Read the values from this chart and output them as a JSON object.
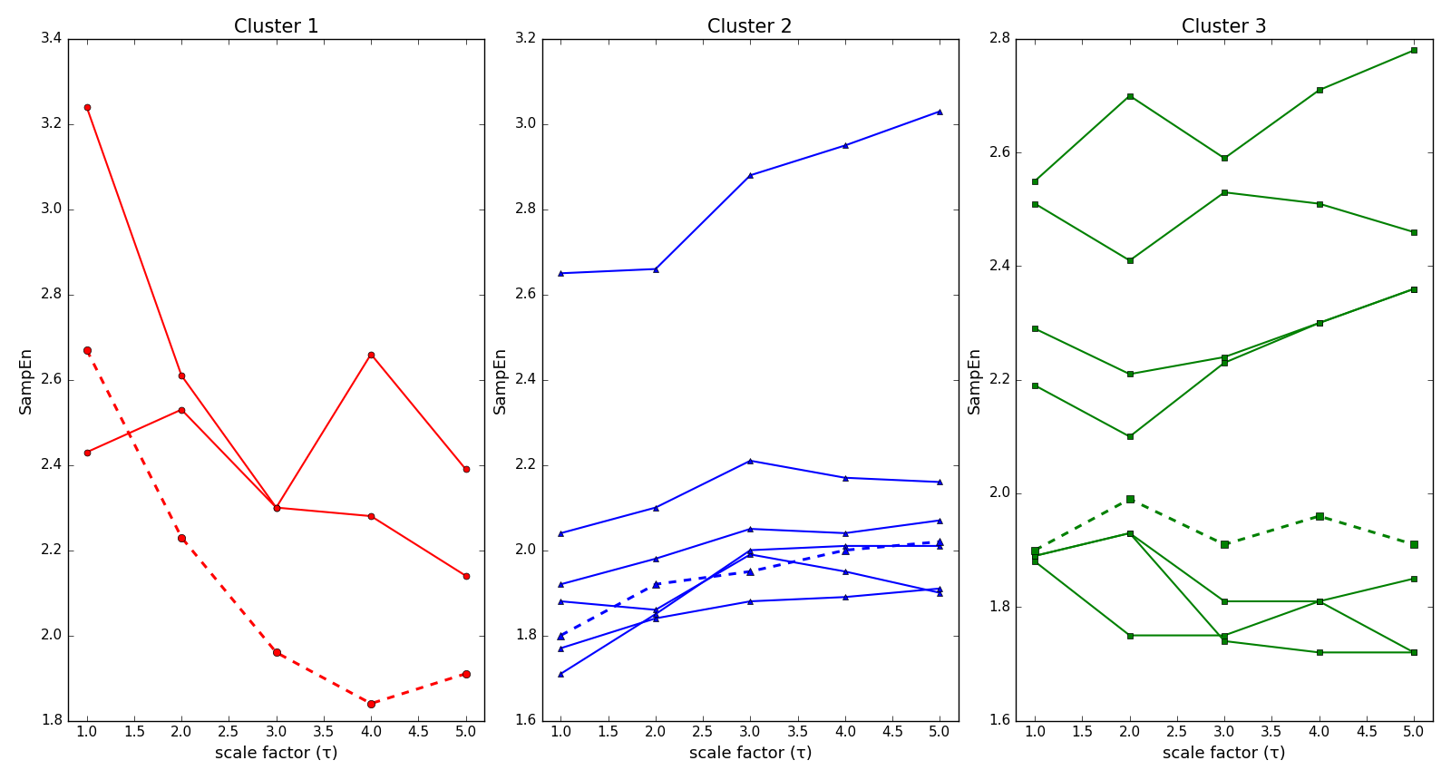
{
  "x": [
    1.0,
    2.0,
    3.0,
    4.0,
    5.0
  ],
  "cluster1": {
    "title": "Cluster 1",
    "ylim": [
      1.8,
      3.4
    ],
    "yticks": [
      1.8,
      2.0,
      2.2,
      2.4,
      2.6,
      2.8,
      3.0,
      3.2,
      3.4
    ],
    "color": "red",
    "solid_lines": [
      [
        3.24,
        2.61,
        2.3,
        2.66,
        2.39
      ],
      [
        2.43,
        2.53,
        2.3,
        2.28,
        2.14
      ]
    ],
    "dashed_line": [
      2.67,
      2.23,
      1.96,
      1.84,
      1.91
    ],
    "solid_marker": "o",
    "dashed_marker": "o"
  },
  "cluster2": {
    "title": "Cluster 2",
    "ylim": [
      1.6,
      3.2
    ],
    "yticks": [
      1.6,
      1.8,
      2.0,
      2.2,
      2.4,
      2.6,
      2.8,
      3.0,
      3.2
    ],
    "color": "blue",
    "solid_lines": [
      [
        2.65,
        2.66,
        2.88,
        2.95,
        3.03
      ],
      [
        2.04,
        2.1,
        2.21,
        2.17,
        2.16
      ],
      [
        1.92,
        1.98,
        2.05,
        2.04,
        2.07
      ],
      [
        1.88,
        1.86,
        1.99,
        1.95,
        1.9
      ],
      [
        1.77,
        1.84,
        1.88,
        1.89,
        1.91
      ],
      [
        1.71,
        1.85,
        2.0,
        2.01,
        2.01
      ]
    ],
    "dashed_line": [
      1.8,
      1.92,
      1.95,
      2.0,
      2.02
    ],
    "solid_marker": "^",
    "dashed_marker": "^"
  },
  "cluster3": {
    "title": "Cluster 3",
    "ylim": [
      1.6,
      2.8
    ],
    "yticks": [
      1.6,
      1.8,
      2.0,
      2.2,
      2.4,
      2.6,
      2.8
    ],
    "color": "green",
    "solid_lines": [
      [
        2.55,
        2.7,
        2.59,
        2.71,
        2.78
      ],
      [
        2.51,
        2.41,
        2.53,
        2.51,
        2.46
      ],
      [
        2.29,
        2.21,
        2.24,
        2.3,
        2.36
      ],
      [
        2.19,
        2.1,
        2.23,
        2.3,
        2.36
      ],
      [
        1.88,
        1.75,
        1.75,
        1.81,
        1.85
      ],
      [
        1.89,
        1.93,
        1.81,
        1.81,
        1.72
      ],
      [
        1.89,
        1.93,
        1.74,
        1.72,
        1.72
      ]
    ],
    "dashed_line": [
      1.9,
      1.99,
      1.91,
      1.96,
      1.91
    ],
    "solid_marker": "s",
    "dashed_marker": "s"
  },
  "xlabel": "scale factor (τ)",
  "ylabel": "SampEn",
  "background_color": "white",
  "title_fontsize": 15,
  "label_fontsize": 13,
  "tick_fontsize": 11
}
